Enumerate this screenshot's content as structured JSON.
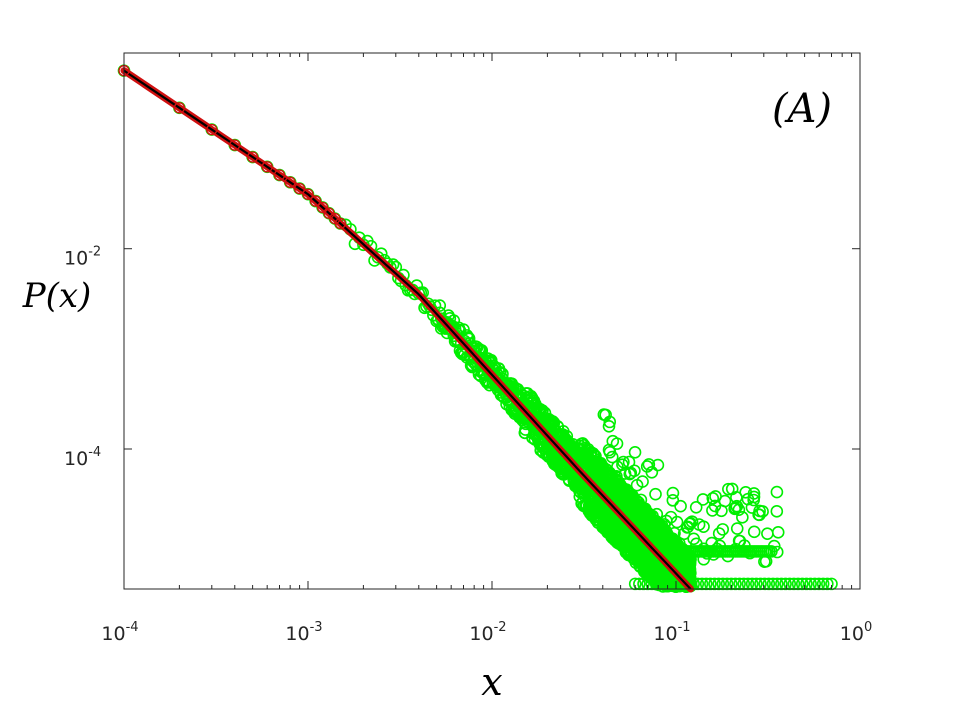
{
  "chart_data": {
    "type": "scatter",
    "xscale": "log",
    "yscale": "log",
    "xlim": [
      0.0001,
      1
    ],
    "ylim": [
      4e-06,
      0.9
    ],
    "xlabel": "x",
    "ylabel": "P(x)",
    "annotation": "(A)",
    "grid": false,
    "x_ticks": [
      {
        "base": "10",
        "exp": "-4",
        "value": 0.0001
      },
      {
        "base": "10",
        "exp": "-3",
        "value": 0.001
      },
      {
        "base": "10",
        "exp": "-2",
        "value": 0.01
      },
      {
        "base": "10",
        "exp": "-1",
        "value": 0.1
      },
      {
        "base": "10",
        "exp": "0",
        "value": 1
      }
    ],
    "y_ticks": [
      {
        "base": "10",
        "exp": "-2",
        "value": 0.01
      },
      {
        "base": "10",
        "exp": "-4",
        "value": 0.0001
      }
    ],
    "series": [
      {
        "kind": "scatter",
        "marker": "circle-open",
        "color": "#00ee00",
        "approx_curve": [
          [
            0.0001,
            0.6
          ],
          [
            0.001,
            0.035
          ],
          [
            0.004,
            0.0035
          ],
          [
            0.01,
            0.00055
          ],
          [
            0.03,
            6e-05
          ],
          [
            0.12,
            4e-06
          ]
        ],
        "scatter_cutoff_x": 0.03,
        "noise_floor_y": [
          4.5e-06,
          9.5e-06
        ],
        "floor_x_range": [
          0.06,
          0.7
        ]
      },
      {
        "kind": "line",
        "color": "#d01010",
        "linewidth": "thick",
        "approx_curve": [
          [
            0.0001,
            0.6
          ],
          [
            0.001,
            0.035
          ],
          [
            0.004,
            0.0035
          ],
          [
            0.01,
            0.00055
          ],
          [
            0.03,
            6e-05
          ],
          [
            0.12,
            4e-06
          ]
        ]
      },
      {
        "kind": "line",
        "color": "#000000",
        "linewidth": "thin",
        "approx_curve": [
          [
            0.0001,
            0.6
          ],
          [
            0.001,
            0.035
          ],
          [
            0.004,
            0.0035
          ],
          [
            0.01,
            0.00055
          ],
          [
            0.03,
            6e-05
          ],
          [
            0.12,
            4e-06
          ]
        ]
      },
      {
        "kind": "scatter",
        "marker": "circle-open",
        "color": "#d01010",
        "x": [
          0.0001,
          0.0002,
          0.0003,
          0.0004,
          0.0005,
          0.0006,
          0.0007,
          0.0008,
          0.0009,
          0.001,
          0.0011,
          0.0012,
          0.0013,
          0.0014,
          0.0015
        ]
      }
    ]
  }
}
